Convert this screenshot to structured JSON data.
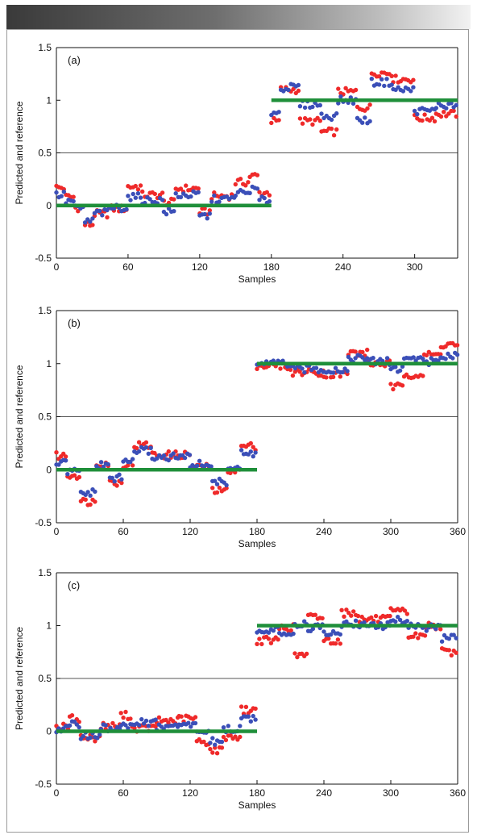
{
  "colors": {
    "predicted_a": "#ef2a2a",
    "predicted_b": "#3b4fb8",
    "reference": "#1f8f3a",
    "axis": "#111111",
    "header_gradient": [
      "#3a3a3a",
      "#f2f2f2"
    ]
  },
  "chart_data": [
    {
      "type": "scatter",
      "panel_label": "(a)",
      "xlabel": "Samples",
      "ylabel": "Predicted and reference",
      "xlim": [
        0,
        336
      ],
      "ylim": [
        -0.5,
        1.5
      ],
      "xticks": [
        0,
        60,
        120,
        180,
        240,
        300
      ],
      "yticks": [
        -0.5,
        0,
        0.5,
        1,
        1.5
      ],
      "hline": 0.5,
      "reference": [
        {
          "x": [
            0,
            180
          ],
          "y": 0
        },
        {
          "x": [
            180,
            336
          ],
          "y": 1
        }
      ],
      "series": [
        {
          "color_key": "predicted_a",
          "segments": [
            {
              "x0": 0,
              "x1": 8,
              "y": 0.17
            },
            {
              "x0": 8,
              "x1": 16,
              "y": 0.08
            },
            {
              "x0": 16,
              "x1": 24,
              "y": -0.02
            },
            {
              "x0": 24,
              "x1": 32,
              "y": -0.18
            },
            {
              "x0": 32,
              "x1": 44,
              "y": -0.08
            },
            {
              "x0": 44,
              "x1": 60,
              "y": -0.03
            },
            {
              "x0": 60,
              "x1": 72,
              "y": 0.18
            },
            {
              "x0": 72,
              "x1": 90,
              "y": 0.1
            },
            {
              "x0": 90,
              "x1": 100,
              "y": 0.03
            },
            {
              "x0": 100,
              "x1": 120,
              "y": 0.16
            },
            {
              "x0": 120,
              "x1": 130,
              "y": -0.06
            },
            {
              "x0": 130,
              "x1": 150,
              "y": 0.09
            },
            {
              "x0": 150,
              "x1": 162,
              "y": 0.22
            },
            {
              "x0": 162,
              "x1": 170,
              "y": 0.28
            },
            {
              "x0": 170,
              "x1": 180,
              "y": 0.12
            },
            {
              "x0": 180,
              "x1": 188,
              "y": 0.8
            },
            {
              "x0": 188,
              "x1": 204,
              "y": 1.1
            },
            {
              "x0": 204,
              "x1": 222,
              "y": 0.8
            },
            {
              "x0": 222,
              "x1": 236,
              "y": 0.7
            },
            {
              "x0": 236,
              "x1": 252,
              "y": 1.08
            },
            {
              "x0": 252,
              "x1": 264,
              "y": 0.93
            },
            {
              "x0": 264,
              "x1": 282,
              "y": 1.26
            },
            {
              "x0": 282,
              "x1": 300,
              "y": 1.2
            },
            {
              "x0": 300,
              "x1": 318,
              "y": 0.83
            },
            {
              "x0": 318,
              "x1": 336,
              "y": 0.87
            }
          ]
        },
        {
          "color_key": "predicted_b",
          "segments": [
            {
              "x0": 0,
              "x1": 8,
              "y": 0.1
            },
            {
              "x0": 8,
              "x1": 16,
              "y": 0.04
            },
            {
              "x0": 16,
              "x1": 24,
              "y": -0.03
            },
            {
              "x0": 24,
              "x1": 32,
              "y": -0.15
            },
            {
              "x0": 32,
              "x1": 44,
              "y": -0.07
            },
            {
              "x0": 44,
              "x1": 60,
              "y": -0.02
            },
            {
              "x0": 60,
              "x1": 72,
              "y": 0.08
            },
            {
              "x0": 72,
              "x1": 90,
              "y": 0.05
            },
            {
              "x0": 90,
              "x1": 100,
              "y": -0.06
            },
            {
              "x0": 100,
              "x1": 120,
              "y": 0.1
            },
            {
              "x0": 120,
              "x1": 130,
              "y": -0.1
            },
            {
              "x0": 130,
              "x1": 150,
              "y": 0.06
            },
            {
              "x0": 150,
              "x1": 162,
              "y": 0.12
            },
            {
              "x0": 162,
              "x1": 170,
              "y": 0.15
            },
            {
              "x0": 170,
              "x1": 180,
              "y": 0.05
            },
            {
              "x0": 180,
              "x1": 188,
              "y": 0.88
            },
            {
              "x0": 188,
              "x1": 204,
              "y": 1.12
            },
            {
              "x0": 204,
              "x1": 222,
              "y": 0.96
            },
            {
              "x0": 222,
              "x1": 236,
              "y": 0.85
            },
            {
              "x0": 236,
              "x1": 252,
              "y": 1.0
            },
            {
              "x0": 252,
              "x1": 264,
              "y": 0.81
            },
            {
              "x0": 264,
              "x1": 282,
              "y": 1.17
            },
            {
              "x0": 282,
              "x1": 300,
              "y": 1.1
            },
            {
              "x0": 300,
              "x1": 318,
              "y": 0.9
            },
            {
              "x0": 318,
              "x1": 336,
              "y": 0.95
            }
          ]
        }
      ]
    },
    {
      "type": "scatter",
      "panel_label": "(b)",
      "xlabel": "Samples",
      "ylabel": "Predicted and reference",
      "xlim": [
        0,
        360
      ],
      "ylim": [
        -0.5,
        1.5
      ],
      "xticks": [
        0,
        60,
        120,
        180,
        240,
        300,
        360
      ],
      "yticks": [
        -0.5,
        0,
        0.5,
        1,
        1.5
      ],
      "hline": 0.5,
      "reference": [
        {
          "x": [
            0,
            180
          ],
          "y": 0
        },
        {
          "x": [
            180,
            360
          ],
          "y": 1
        }
      ],
      "series": [
        {
          "color_key": "predicted_a",
          "segments": [
            {
              "x0": 0,
              "x1": 10,
              "y": 0.13
            },
            {
              "x0": 10,
              "x1": 22,
              "y": -0.05
            },
            {
              "x0": 22,
              "x1": 36,
              "y": -0.3
            },
            {
              "x0": 36,
              "x1": 48,
              "y": 0.06
            },
            {
              "x0": 48,
              "x1": 60,
              "y": -0.12
            },
            {
              "x0": 60,
              "x1": 70,
              "y": 0.05
            },
            {
              "x0": 70,
              "x1": 86,
              "y": 0.23
            },
            {
              "x0": 86,
              "x1": 120,
              "y": 0.14
            },
            {
              "x0": 120,
              "x1": 140,
              "y": 0.02
            },
            {
              "x0": 140,
              "x1": 154,
              "y": -0.2
            },
            {
              "x0": 154,
              "x1": 166,
              "y": 0.0
            },
            {
              "x0": 166,
              "x1": 180,
              "y": 0.22
            },
            {
              "x0": 180,
              "x1": 210,
              "y": 0.98
            },
            {
              "x0": 210,
              "x1": 240,
              "y": 0.92
            },
            {
              "x0": 240,
              "x1": 262,
              "y": 0.9
            },
            {
              "x0": 262,
              "x1": 280,
              "y": 1.1
            },
            {
              "x0": 280,
              "x1": 300,
              "y": 1.0
            },
            {
              "x0": 300,
              "x1": 312,
              "y": 0.78
            },
            {
              "x0": 312,
              "x1": 330,
              "y": 0.9
            },
            {
              "x0": 330,
              "x1": 345,
              "y": 1.08
            },
            {
              "x0": 345,
              "x1": 360,
              "y": 1.18
            }
          ]
        },
        {
          "color_key": "predicted_b",
          "segments": [
            {
              "x0": 0,
              "x1": 10,
              "y": 0.06
            },
            {
              "x0": 10,
              "x1": 22,
              "y": -0.02
            },
            {
              "x0": 22,
              "x1": 36,
              "y": -0.22
            },
            {
              "x0": 36,
              "x1": 48,
              "y": 0.04
            },
            {
              "x0": 48,
              "x1": 60,
              "y": -0.08
            },
            {
              "x0": 60,
              "x1": 70,
              "y": 0.08
            },
            {
              "x0": 70,
              "x1": 86,
              "y": 0.18
            },
            {
              "x0": 86,
              "x1": 120,
              "y": 0.12
            },
            {
              "x0": 120,
              "x1": 140,
              "y": 0.05
            },
            {
              "x0": 140,
              "x1": 154,
              "y": -0.12
            },
            {
              "x0": 154,
              "x1": 166,
              "y": 0.02
            },
            {
              "x0": 166,
              "x1": 180,
              "y": 0.15
            },
            {
              "x0": 180,
              "x1": 210,
              "y": 1.0
            },
            {
              "x0": 210,
              "x1": 240,
              "y": 0.95
            },
            {
              "x0": 240,
              "x1": 262,
              "y": 0.94
            },
            {
              "x0": 262,
              "x1": 280,
              "y": 1.05
            },
            {
              "x0": 280,
              "x1": 300,
              "y": 1.02
            },
            {
              "x0": 300,
              "x1": 312,
              "y": 0.95
            },
            {
              "x0": 312,
              "x1": 330,
              "y": 1.05
            },
            {
              "x0": 330,
              "x1": 345,
              "y": 1.02
            },
            {
              "x0": 345,
              "x1": 360,
              "y": 1.08
            }
          ]
        }
      ]
    },
    {
      "type": "scatter",
      "panel_label": "(c)",
      "xlabel": "Samples",
      "ylabel": "Predicted and reference",
      "xlim": [
        0,
        360
      ],
      "ylim": [
        -0.5,
        1.5
      ],
      "xticks": [
        0,
        60,
        120,
        180,
        240,
        300,
        360
      ],
      "yticks": [
        -0.5,
        0,
        0.5,
        1,
        1.5
      ],
      "hline": 0.5,
      "reference": [
        {
          "x": [
            0,
            180
          ],
          "y": 0
        },
        {
          "x": [
            180,
            360
          ],
          "y": 1
        }
      ],
      "series": [
        {
          "color_key": "predicted_a",
          "segments": [
            {
              "x0": 0,
              "x1": 12,
              "y": 0.04
            },
            {
              "x0": 12,
              "x1": 22,
              "y": 0.12
            },
            {
              "x0": 22,
              "x1": 40,
              "y": -0.06
            },
            {
              "x0": 40,
              "x1": 58,
              "y": 0.05
            },
            {
              "x0": 58,
              "x1": 68,
              "y": 0.15
            },
            {
              "x0": 68,
              "x1": 90,
              "y": 0.03
            },
            {
              "x0": 90,
              "x1": 110,
              "y": 0.1
            },
            {
              "x0": 110,
              "x1": 126,
              "y": 0.12
            },
            {
              "x0": 126,
              "x1": 138,
              "y": -0.1
            },
            {
              "x0": 138,
              "x1": 150,
              "y": -0.18
            },
            {
              "x0": 150,
              "x1": 166,
              "y": -0.05
            },
            {
              "x0": 166,
              "x1": 180,
              "y": 0.2
            },
            {
              "x0": 180,
              "x1": 200,
              "y": 0.86
            },
            {
              "x0": 200,
              "x1": 214,
              "y": 0.98
            },
            {
              "x0": 214,
              "x1": 226,
              "y": 0.72
            },
            {
              "x0": 226,
              "x1": 240,
              "y": 1.08
            },
            {
              "x0": 240,
              "x1": 256,
              "y": 0.86
            },
            {
              "x0": 256,
              "x1": 272,
              "y": 1.12
            },
            {
              "x0": 272,
              "x1": 300,
              "y": 1.06
            },
            {
              "x0": 300,
              "x1": 316,
              "y": 1.13
            },
            {
              "x0": 316,
              "x1": 332,
              "y": 0.9
            },
            {
              "x0": 332,
              "x1": 346,
              "y": 1.0
            },
            {
              "x0": 346,
              "x1": 360,
              "y": 0.75
            }
          ]
        },
        {
          "color_key": "predicted_b",
          "segments": [
            {
              "x0": 0,
              "x1": 12,
              "y": 0.02
            },
            {
              "x0": 12,
              "x1": 22,
              "y": 0.06
            },
            {
              "x0": 22,
              "x1": 40,
              "y": -0.04
            },
            {
              "x0": 40,
              "x1": 58,
              "y": 0.03
            },
            {
              "x0": 58,
              "x1": 68,
              "y": 0.05
            },
            {
              "x0": 68,
              "x1": 90,
              "y": 0.08
            },
            {
              "x0": 90,
              "x1": 110,
              "y": 0.04
            },
            {
              "x0": 110,
              "x1": 126,
              "y": 0.06
            },
            {
              "x0": 126,
              "x1": 138,
              "y": 0.0
            },
            {
              "x0": 138,
              "x1": 150,
              "y": -0.1
            },
            {
              "x0": 150,
              "x1": 166,
              "y": 0.02
            },
            {
              "x0": 166,
              "x1": 180,
              "y": 0.12
            },
            {
              "x0": 180,
              "x1": 200,
              "y": 0.96
            },
            {
              "x0": 200,
              "x1": 214,
              "y": 0.92
            },
            {
              "x0": 214,
              "x1": 226,
              "y": 1.02
            },
            {
              "x0": 226,
              "x1": 240,
              "y": 0.98
            },
            {
              "x0": 240,
              "x1": 256,
              "y": 0.92
            },
            {
              "x0": 256,
              "x1": 272,
              "y": 1.02
            },
            {
              "x0": 272,
              "x1": 300,
              "y": 1.0
            },
            {
              "x0": 300,
              "x1": 316,
              "y": 1.05
            },
            {
              "x0": 316,
              "x1": 332,
              "y": 1.0
            },
            {
              "x0": 332,
              "x1": 346,
              "y": 0.98
            },
            {
              "x0": 346,
              "x1": 360,
              "y": 0.88
            }
          ]
        }
      ]
    }
  ]
}
